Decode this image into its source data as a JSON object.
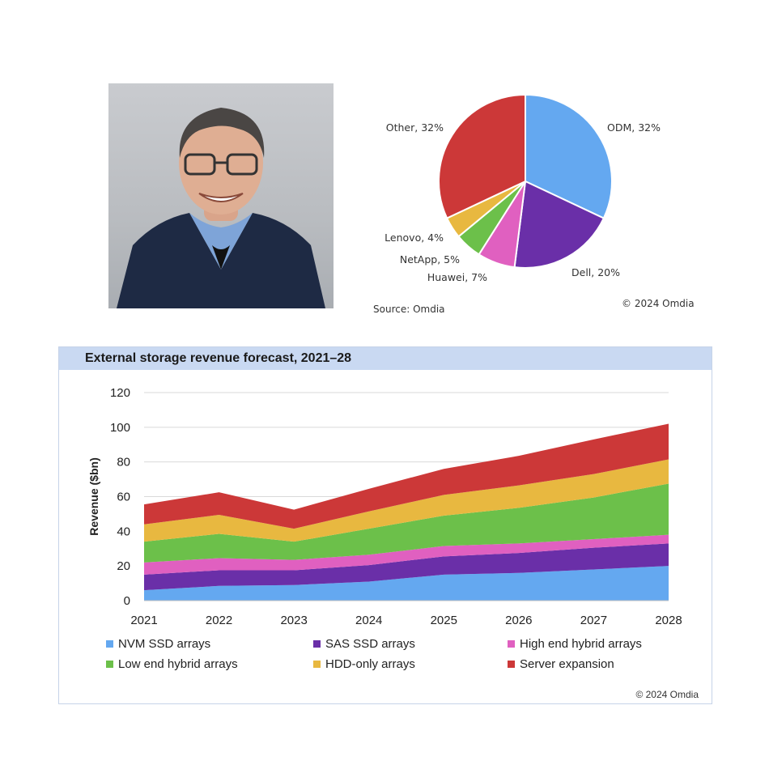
{
  "photo": {
    "alt": ""
  },
  "pie": {
    "slices": [
      {
        "label": "ODM, 32%",
        "value": 32,
        "color": "#64a8f0"
      },
      {
        "label": "Dell, 20%",
        "value": 20,
        "color": "#6a2fa8"
      },
      {
        "label": "Huawei, 7%",
        "value": 7,
        "color": "#e060c0"
      },
      {
        "label": "NetApp, 5%",
        "value": 5,
        "color": "#6cc04a"
      },
      {
        "label": "Lenovo, 4%",
        "value": 4,
        "color": "#e8b840"
      },
      {
        "label": "Other, 32%",
        "value": 32,
        "color": "#cc3838"
      }
    ],
    "source": "Source: Omdia",
    "copyright": "© 2024 Omdia"
  },
  "area_chart": {
    "title": "External storage revenue forecast, 2021–28",
    "copyright": "© 2024 Omdia"
  },
  "chart_data": [
    {
      "type": "pie",
      "title": "",
      "categories": [
        "ODM",
        "Dell",
        "Huawei",
        "NetApp",
        "Lenovo",
        "Other"
      ],
      "values": [
        32,
        20,
        7,
        5,
        4,
        32
      ]
    },
    {
      "type": "area",
      "stacked": true,
      "title": "External storage revenue forecast, 2021–28",
      "xlabel": "",
      "ylabel": "Revenue ($bn)",
      "x": [
        "2021",
        "2022",
        "2023",
        "2024",
        "2025",
        "2026",
        "2027",
        "2028"
      ],
      "ylim": [
        0,
        120
      ],
      "yticks": [
        "0",
        "20",
        "40",
        "60",
        "80",
        "100",
        "120"
      ],
      "grid": true,
      "legend_position": "bottom",
      "series": [
        {
          "name": "NVM SSD arrays",
          "color": "#64a8f0",
          "values": [
            6,
            8.5,
            9,
            11,
            15,
            16,
            18,
            20
          ]
        },
        {
          "name": "SAS SSD arrays",
          "color": "#6a2fa8",
          "values": [
            9,
            9,
            8.5,
            9.5,
            10.5,
            11.5,
            12.5,
            13
          ]
        },
        {
          "name": "High end hybrid arrays",
          "color": "#e060c0",
          "values": [
            7,
            7,
            6,
            6,
            6,
            5.5,
            5,
            5
          ]
        },
        {
          "name": "Low end hybrid arrays",
          "color": "#6cc04a",
          "values": [
            12,
            14,
            10.5,
            15,
            17.5,
            20.5,
            24,
            29.5
          ]
        },
        {
          "name": "HDD-only arrays",
          "color": "#e8b840",
          "values": [
            10,
            11,
            7.5,
            10,
            12,
            13,
            13.5,
            14
          ]
        },
        {
          "name": "Server expansion",
          "color": "#cc3838",
          "values": [
            11.5,
            13,
            11,
            13,
            15,
            17,
            20,
            20.5
          ]
        }
      ]
    }
  ]
}
